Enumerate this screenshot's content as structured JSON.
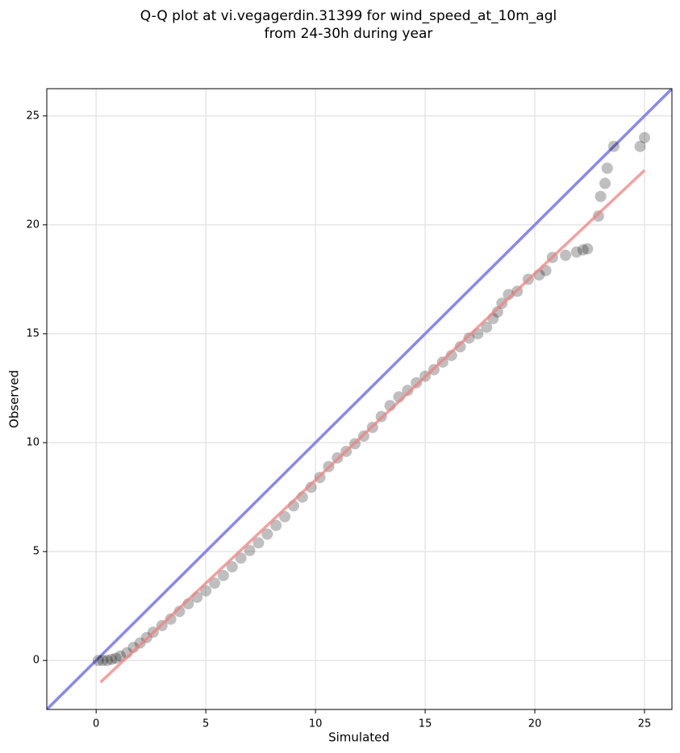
{
  "chart_data": {
    "type": "scatter",
    "title": [
      "Q-Q plot at vi.vegagerdin.31399 for wind_speed_at_10m_agl",
      "from 24-30h during year"
    ],
    "xlabel": "Simulated",
    "ylabel": "Observed",
    "x": [
      0.1,
      0.3,
      0.5,
      0.7,
      0.9,
      1.1,
      1.4,
      1.7,
      2.0,
      2.3,
      2.6,
      3.0,
      3.4,
      3.8,
      4.2,
      4.6,
      5.0,
      5.4,
      5.8,
      6.2,
      6.6,
      7.0,
      7.4,
      7.8,
      8.2,
      8.6,
      9.0,
      9.4,
      9.8,
      10.2,
      10.6,
      11.0,
      11.4,
      11.8,
      12.2,
      12.6,
      13.0,
      13.4,
      13.8,
      14.2,
      14.6,
      15.0,
      15.4,
      15.8,
      16.2,
      16.6,
      17.0,
      17.4,
      17.8,
      18.1,
      18.3,
      18.5,
      18.8,
      19.2,
      19.7,
      20.2,
      20.5,
      20.8,
      21.4,
      21.9,
      22.2,
      22.4,
      22.9,
      23.0,
      23.2,
      23.3,
      23.6,
      24.8,
      25.0
    ],
    "values": [
      0,
      0,
      0,
      0.05,
      0.1,
      0.2,
      0.35,
      0.6,
      0.8,
      1.05,
      1.3,
      1.6,
      1.9,
      2.25,
      2.6,
      2.9,
      3.2,
      3.55,
      3.9,
      4.3,
      4.7,
      5.05,
      5.4,
      5.8,
      6.2,
      6.6,
      7.1,
      7.5,
      7.95,
      8.4,
      8.9,
      9.3,
      9.6,
      9.95,
      10.3,
      10.7,
      11.2,
      11.7,
      12.1,
      12.4,
      12.75,
      13.05,
      13.35,
      13.7,
      14.0,
      14.4,
      14.8,
      15.0,
      15.3,
      15.7,
      16.0,
      16.4,
      16.8,
      16.95,
      17.5,
      17.7,
      17.9,
      18.5,
      18.6,
      18.75,
      18.85,
      18.9,
      20.4,
      21.3,
      21.9,
      22.6,
      23.6,
      23.6,
      24.0
    ],
    "color": "#000000",
    "alpha": 0.25,
    "fit_line": {
      "x": [
        0.2,
        25
      ],
      "y": [
        -1.0,
        22.5
      ]
    },
    "fit_color": "#f08080",
    "identity_color": "#8888f0",
    "xlim": [
      -2.25,
      26.25
    ],
    "ylim": [
      -2.25,
      26.25
    ],
    "xticks": [
      0,
      5,
      10,
      15,
      20,
      25
    ],
    "yticks": [
      0,
      5,
      10,
      15,
      20,
      25
    ],
    "grid": true
  }
}
